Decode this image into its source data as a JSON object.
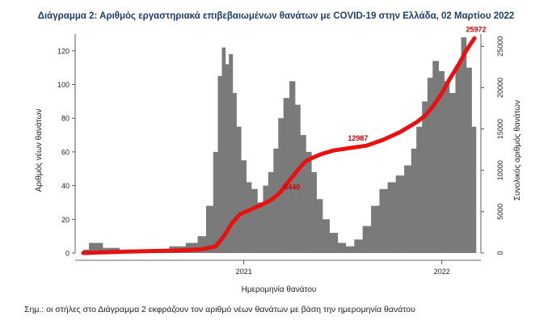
{
  "title": "Διάγραμμα 2: Αριθμός εργαστηριακά επιβεβαιωμένων θανάτων με COVID-19 στην Ελλάδα, 02 Μαρτίου 2022",
  "note": "Σημ.: οι στήλες στο Διάγραμμα 2 εκφράζουν τον αριθμό νέων θανάτων με βάση την ημερομηνία θανάτου",
  "colors": {
    "bars": "#7a7a7a",
    "line": "#e81010",
    "annotation": "#d40000"
  },
  "chart_data": {
    "type": "bar",
    "xlabel": "Ημερομηνία θανάτου",
    "ylabel": "Αριθμός νέων θανάτων",
    "y2label": "Συνολικός αριθμός θανάτων",
    "x_ticks": [
      "2021",
      "2022"
    ],
    "y_ticks": [
      "0",
      "20",
      "40",
      "60",
      "80",
      "100",
      "120"
    ],
    "y2_ticks": [
      "0",
      "5000",
      "10000",
      "15000",
      "20000",
      "25000"
    ],
    "ylim": [
      0,
      130
    ],
    "y2lim": [
      0,
      26500
    ],
    "grid": false,
    "x_range_dates": [
      "2020-03-11",
      "2022-03-02"
    ],
    "x_tick_dates": [
      "2021-01-01",
      "2022-01-01"
    ],
    "series": [
      {
        "kind": "bar",
        "x": [
          "2020-03-11",
          "2020-04-01",
          "2020-05-01",
          "2020-06-01",
          "2020-07-01",
          "2020-08-01",
          "2020-09-01",
          "2020-10-01",
          "2020-10-15",
          "2020-11-01",
          "2020-11-10",
          "2020-11-18",
          "2020-11-25",
          "2020-12-01",
          "2020-12-08",
          "2020-12-15",
          "2020-12-22",
          "2021-01-01",
          "2021-01-10",
          "2021-01-20",
          "2021-02-01",
          "2021-02-10",
          "2021-02-20",
          "2021-03-01",
          "2021-03-10",
          "2021-03-20",
          "2021-04-01",
          "2021-04-10",
          "2021-04-20",
          "2021-05-01",
          "2021-05-10",
          "2021-05-20",
          "2021-06-01",
          "2021-06-15",
          "2021-07-01",
          "2021-07-15",
          "2021-08-01",
          "2021-08-15",
          "2021-09-01",
          "2021-09-15",
          "2021-10-01",
          "2021-10-15",
          "2021-11-01",
          "2021-11-10",
          "2021-11-20",
          "2021-12-01",
          "2021-12-10",
          "2021-12-20",
          "2022-01-01",
          "2022-01-10",
          "2022-01-20",
          "2022-02-01",
          "2022-02-10",
          "2022-02-20",
          "2022-03-02"
        ],
        "values": [
          2,
          6,
          3,
          2,
          1,
          2,
          4,
          6,
          10,
          28,
          60,
          105,
          122,
          112,
          118,
          95,
          75,
          55,
          42,
          38,
          30,
          40,
          48,
          62,
          80,
          92,
          102,
          88,
          70,
          60,
          48,
          32,
          20,
          12,
          6,
          4,
          8,
          16,
          28,
          38,
          42,
          46,
          52,
          62,
          75,
          90,
          104,
          114,
          108,
          102,
          95,
          112,
          128,
          110,
          75
        ]
      },
      {
        "kind": "line",
        "axis": "y2",
        "x": [
          "2020-03-11",
          "2020-06-01",
          "2020-09-01",
          "2020-10-15",
          "2020-11-10",
          "2020-11-25",
          "2020-12-10",
          "2020-12-25",
          "2021-01-15",
          "2021-02-01",
          "2021-02-20",
          "2021-03-10",
          "2021-03-25",
          "2021-04-10",
          "2021-04-25",
          "2021-05-10",
          "2021-05-25",
          "2021-06-15",
          "2021-07-15",
          "2021-08-15",
          "2021-09-15",
          "2021-10-15",
          "2021-11-15",
          "2021-12-01",
          "2021-12-15",
          "2022-01-01",
          "2022-01-15",
          "2022-02-01",
          "2022-02-15",
          "2022-03-02"
        ],
        "values": [
          0,
          180,
          300,
          450,
          800,
          2000,
          3600,
          4700,
          5300,
          5800,
          6400,
          7400,
          8700,
          10000,
          11100,
          11600,
          12000,
          12400,
          12700,
          12987,
          13700,
          14600,
          15800,
          16600,
          17700,
          19300,
          21000,
          22800,
          24500,
          25972
        ]
      }
    ],
    "annotations": [
      "6440",
      "12987",
      "25972"
    ]
  }
}
